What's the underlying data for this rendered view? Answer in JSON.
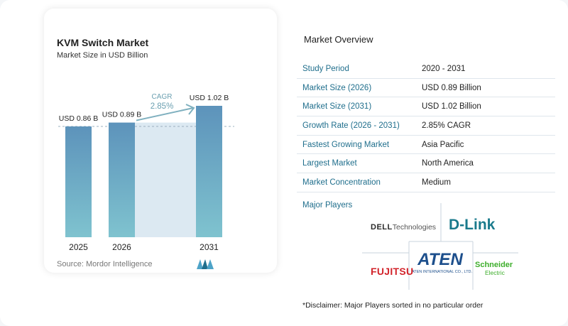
{
  "chart_data": {
    "type": "bar",
    "title": "KVM Switch Market",
    "subtitle": "Market Size in USD Billion",
    "categories": [
      "2025",
      "2026",
      "2031"
    ],
    "values": [
      0.86,
      0.89,
      1.02
    ],
    "value_labels": [
      "USD 0.86 B",
      "USD 0.89 B",
      "USD 1.02 B"
    ],
    "ylim": [
      0,
      1.02
    ],
    "annotation": {
      "label": "CAGR",
      "value": "2.85%"
    },
    "bar_color": "#5d93bb",
    "band_color": "#dce9f2"
  },
  "source": "Source:  Mordor Intelligence",
  "overview": {
    "title": "Market Overview",
    "rows": [
      {
        "key": "Study Period",
        "value": "2020 - 2031"
      },
      {
        "key": "Market Size (2026)",
        "value": "USD 0.89 Billion"
      },
      {
        "key": "Market Size (2031)",
        "value": "USD 1.02 Billion"
      },
      {
        "key": "Growth Rate (2026 - 2031)",
        "value": "2.85% CAGR"
      },
      {
        "key": "Fastest Growing Market",
        "value": "Asia Pacific"
      },
      {
        "key": "Largest Market",
        "value": "North America"
      },
      {
        "key": "Market Concentration",
        "value": "Medium"
      }
    ]
  },
  "players": {
    "title": "Major Players",
    "logos": {
      "dell": {
        "brand": "DELL",
        "suffix": "Technologies"
      },
      "dlink": {
        "text": "D-Link"
      },
      "aten": {
        "text": "ATEN",
        "sub": "ATEN INTERNATIONAL CO., LTD."
      },
      "fujitsu": {
        "text": "FUJITSU"
      },
      "schneider": {
        "line1": "Schneider",
        "line2": "Electric"
      }
    }
  },
  "disclaimer": "*Disclaimer: Major Players sorted in no particular order"
}
